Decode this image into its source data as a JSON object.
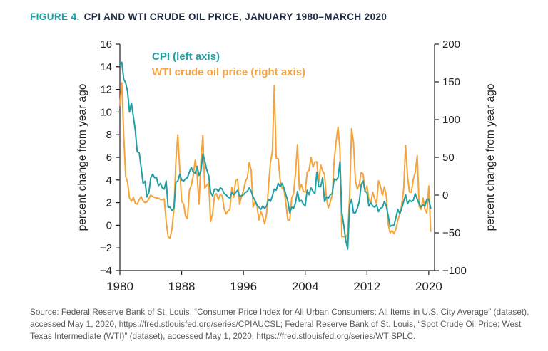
{
  "figure": {
    "label": "FIGURE 4.",
    "title": "CPI AND WTI CRUDE OIL PRICE, JANUARY 1980–MARCH 2020"
  },
  "colors": {
    "teal": "#1FA0A5",
    "orange": "#F5A43C",
    "title_navy": "#1F2A44",
    "ink": "#231F20",
    "source_gray": "#58595B"
  },
  "chart_data": {
    "type": "line",
    "title": "CPI AND WTI CRUDE OIL PRICE, JANUARY 1980–MARCH 2020",
    "x_start": 1980.0,
    "x_step": 0.25,
    "x_axis": {
      "min": 1980,
      "max": 2020.75,
      "ticks": [
        1980,
        1988,
        1996,
        2004,
        2012,
        2020
      ]
    },
    "left_axis": {
      "label": "percent change from year ago",
      "min": -4,
      "max": 16,
      "ticks": [
        16,
        14,
        12,
        10,
        8,
        6,
        4,
        2,
        0,
        -2,
        -4
      ]
    },
    "right_axis": {
      "label": "percent change from year ago",
      "min": -100,
      "max": 200,
      "ticks": [
        200,
        150,
        100,
        50,
        0,
        -50,
        -100
      ]
    },
    "grid": false,
    "legend_position": "top-left-inside",
    "legend": [
      {
        "label": "CPI (left axis)",
        "color_key": "teal",
        "axis": "left"
      },
      {
        "label": "WTI crude oil price (right axis)",
        "color_key": "orange",
        "axis": "right"
      }
    ],
    "series": [
      {
        "name": "CPI",
        "axis": "left",
        "color": "#1FA0A5",
        "values": [
          14.2,
          14.4,
          12.9,
          12.6,
          11.8,
          10.0,
          10.8,
          9.6,
          8.4,
          6.5,
          6.4,
          5.1,
          3.7,
          3.9,
          2.5,
          2.9,
          4.2,
          4.5,
          4.2,
          4.2,
          3.5,
          3.7,
          3.3,
          3.2,
          3.9,
          1.6,
          1.6,
          1.3,
          1.5,
          3.8,
          3.9,
          4.5,
          4.0,
          3.9,
          4.1,
          4.2,
          4.7,
          5.1,
          4.7,
          4.6,
          5.2,
          4.4,
          4.8,
          6.3,
          5.7,
          4.9,
          4.4,
          2.9,
          2.6,
          3.2,
          3.2,
          3.0,
          3.3,
          3.2,
          2.8,
          2.7,
          2.5,
          2.4,
          2.9,
          2.7,
          2.9,
          3.1,
          2.6,
          2.6,
          2.7,
          2.9,
          3.0,
          3.3,
          3.0,
          2.5,
          2.2,
          1.8,
          1.6,
          1.4,
          1.7,
          1.5,
          1.7,
          2.3,
          2.1,
          2.6,
          3.2,
          3.1,
          3.7,
          3.4,
          3.7,
          3.3,
          2.7,
          2.1,
          1.1,
          1.6,
          1.5,
          2.0,
          3.0,
          2.1,
          2.2,
          1.9,
          1.7,
          3.1,
          2.7,
          3.3,
          3.0,
          2.8,
          4.7,
          3.4,
          3.4,
          4.2,
          2.1,
          2.5,
          2.4,
          2.7,
          2.8,
          4.1,
          4.0,
          4.2,
          5.6,
          1.1,
          0.0,
          -1.3,
          -2.1,
          1.8,
          2.3,
          1.1,
          1.1,
          1.5,
          2.1,
          3.6,
          3.9,
          3.0,
          2.9,
          1.7,
          2.0,
          1.7,
          1.6,
          1.8,
          1.2,
          1.5,
          1.6,
          2.1,
          1.7,
          0.8,
          -0.1,
          0.0,
          0.0,
          0.7,
          1.4,
          1.0,
          1.5,
          2.1,
          2.7,
          1.9,
          2.2,
          2.1,
          2.2,
          2.8,
          2.3,
          1.9,
          1.6,
          1.8,
          1.7,
          2.3,
          2.3,
          1.5
        ]
      },
      {
        "name": "WTI crude oil price",
        "axis": "right",
        "color": "#F5A43C",
        "values": [
          119,
          149,
          79,
          25,
          17,
          -4,
          -8,
          -3,
          -11,
          -12,
          -6,
          -2,
          -8,
          -10,
          -9,
          -5,
          0,
          -2,
          -3,
          -4,
          -4,
          -6,
          -6,
          -5,
          -35,
          -55,
          -57,
          -45,
          -18,
          45,
          80,
          34,
          -8,
          -12,
          -28,
          -31,
          6,
          13,
          26,
          46,
          27,
          -12,
          45,
          79,
          9,
          13,
          16,
          -35,
          -25,
          -1,
          2,
          -6,
          1,
          -1,
          -18,
          -25,
          -21,
          -19,
          10,
          -3,
          19,
          21,
          -12,
          -2,
          6,
          18,
          23,
          43,
          33,
          -16,
          -8,
          -14,
          -33,
          -22,
          -28,
          -38,
          -25,
          12,
          43,
          58,
          145,
          49,
          48,
          20,
          9,
          7,
          -11,
          -33,
          -33,
          -4,
          2,
          30,
          67,
          7,
          14,
          5,
          4,
          30,
          33,
          50,
          37,
          44,
          44,
          17,
          40,
          32,
          27,
          -5,
          -17,
          -9,
          0,
          45,
          71,
          90,
          60,
          -55,
          -55,
          -56,
          -52,
          -1,
          88,
          70,
          19,
          8,
          14,
          30,
          28,
          5,
          12,
          -6,
          -10,
          4,
          -5,
          -11,
          19,
          12,
          0,
          11,
          -1,
          -39,
          -50,
          -47,
          -51,
          -45,
          -33,
          -25,
          -13,
          8,
          66,
          25,
          4,
          4,
          21,
          30,
          52,
          -15,
          -19,
          -4,
          -19,
          -24,
          12,
          -48
        ]
      }
    ]
  },
  "source": {
    "text": "Source: Federal Reserve Bank of St. Louis, “Consumer Price Index for All Urban Consumers: All Items in U.S. City Average” (dataset), accessed May 1, 2020, https://fred.stlouisfed.org/series/CPIAUCSL; Federal Reserve Bank of St. Louis, “Spot Crude Oil Price: West Texas Intermediate (WTI)” (dataset), accessed May 1, 2020, https://fred.stlouisfed.org/series/WTISPLC."
  }
}
